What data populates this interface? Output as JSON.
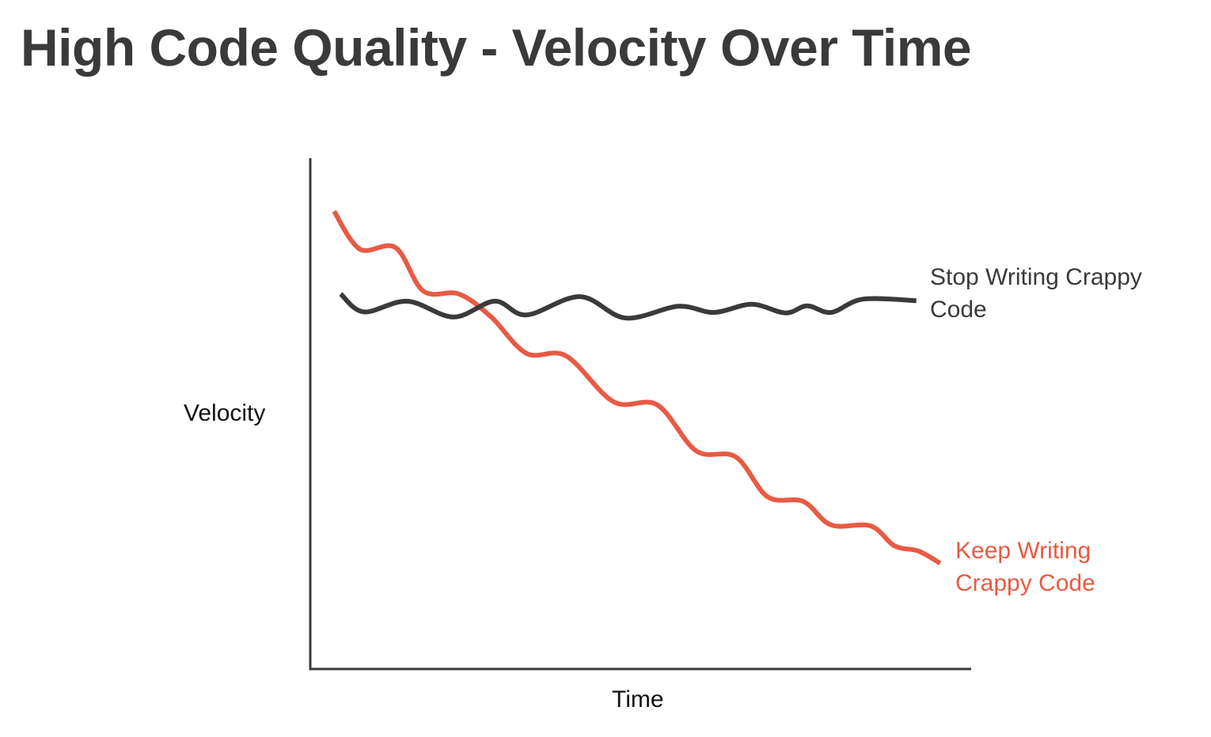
{
  "chart_data": {
    "type": "line",
    "title": "High Code Quality - Velocity Over Time",
    "xlabel": "Time",
    "ylabel": "Velocity",
    "xlim": [
      0,
      100
    ],
    "ylim": [
      0,
      100
    ],
    "grid": false,
    "ticks": false,
    "series": [
      {
        "name": "Stop Writing Crappy Code",
        "label_lines": [
          "Stop Writing Crappy",
          "Code"
        ],
        "color": "#3a3a3a",
        "points": [
          [
            4.6,
            73.4
          ],
          [
            8.1,
            69.9
          ],
          [
            14.7,
            72.0
          ],
          [
            21.7,
            68.9
          ],
          [
            27.9,
            72.0
          ],
          [
            32.7,
            69.3
          ],
          [
            40.8,
            72.9
          ],
          [
            47.7,
            68.7
          ],
          [
            55.7,
            71.0
          ],
          [
            61.1,
            69.8
          ],
          [
            66.8,
            71.4
          ],
          [
            71.9,
            69.7
          ],
          [
            75.2,
            71.1
          ],
          [
            78.8,
            69.8
          ],
          [
            83.6,
            72.4
          ],
          [
            91.7,
            72.1
          ]
        ]
      },
      {
        "name": "Keep Writing Crappy Code",
        "label_lines": [
          "Keep Writing",
          "Crappy Code"
        ],
        "color": "#e85a43",
        "points": [
          [
            3.6,
            89.6
          ],
          [
            7.5,
            82.2
          ],
          [
            12.9,
            82.5
          ],
          [
            17.1,
            74.0
          ],
          [
            22.5,
            73.4
          ],
          [
            27.3,
            69.0
          ],
          [
            32.7,
            61.8
          ],
          [
            38.7,
            61.3
          ],
          [
            45.9,
            52.3
          ],
          [
            52.5,
            51.7
          ],
          [
            58.4,
            42.7
          ],
          [
            64.4,
            41.5
          ],
          [
            69.2,
            33.7
          ],
          [
            74.6,
            32.8
          ],
          [
            78.8,
            28.2
          ],
          [
            84.8,
            28.0
          ],
          [
            88.4,
            24.1
          ],
          [
            92.0,
            23.1
          ],
          [
            95.3,
            20.7
          ]
        ]
      }
    ],
    "axis_color": "#3a3a3a"
  }
}
